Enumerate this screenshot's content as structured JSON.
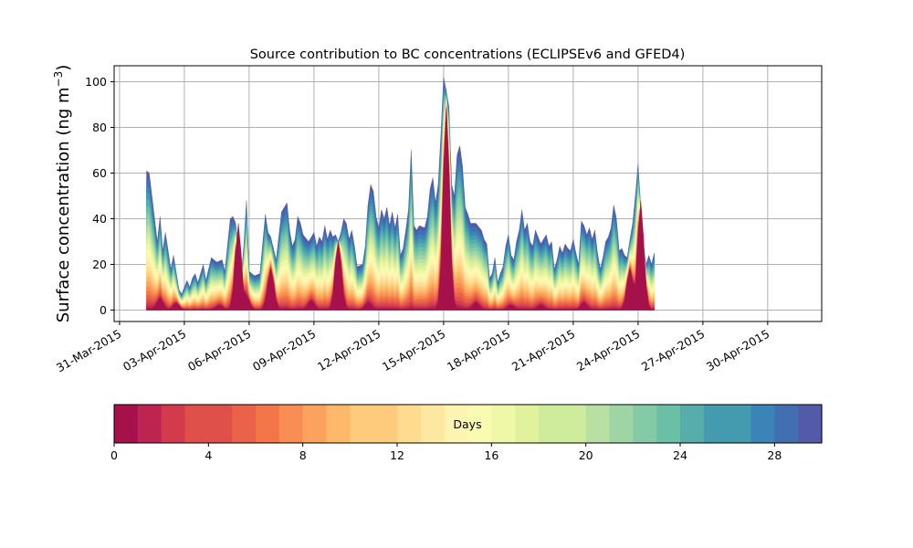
{
  "chart_data": {
    "type": "area",
    "stacked": true,
    "title": "Source contribution to BC concentrations (ECLIPSEv6 and GFED4)",
    "ylabel_main": "Surface concentration (ng m",
    "ylabel_sup": "−3",
    "ylabel_close": ")",
    "xlabel": "",
    "x_start": "2015-04-01T06:00",
    "x_step_hours": 3,
    "xlim": [
      "2015-03-30T18:00",
      "2015-05-02T12:00"
    ],
    "ylim": [
      -5,
      107
    ],
    "grid": true,
    "x_ticks": [
      "31-Mar-2015",
      "03-Apr-2015",
      "06-Apr-2015",
      "09-Apr-2015",
      "12-Apr-2015",
      "15-Apr-2015",
      "18-Apr-2015",
      "21-Apr-2015",
      "24-Apr-2015",
      "27-Apr-2015",
      "30-Apr-2015"
    ],
    "x_tick_dates": [
      "2015-03-31",
      "2015-04-03",
      "2015-04-06",
      "2015-04-09",
      "2015-04-12",
      "2015-04-15",
      "2015-04-18",
      "2015-04-21",
      "2015-04-24",
      "2015-04-27",
      "2015-04-30"
    ],
    "y_ticks": [
      0,
      20,
      40,
      60,
      80,
      100
    ],
    "total_keyframes": [
      [
        0,
        61
      ],
      [
        1,
        60
      ],
      [
        3,
        40
      ],
      [
        4,
        30
      ],
      [
        5,
        41
      ],
      [
        6,
        26
      ],
      [
        7,
        34
      ],
      [
        9,
        18
      ],
      [
        10,
        24
      ],
      [
        12,
        9
      ],
      [
        13,
        7
      ],
      [
        14,
        10
      ],
      [
        15,
        13
      ],
      [
        16,
        10
      ],
      [
        17,
        14
      ],
      [
        18,
        16
      ],
      [
        19,
        12
      ],
      [
        21,
        20
      ],
      [
        22,
        13
      ],
      [
        24,
        23
      ],
      [
        26,
        21
      ],
      [
        28,
        22
      ],
      [
        29,
        17
      ],
      [
        31,
        40
      ],
      [
        32,
        41
      ],
      [
        33,
        38
      ],
      [
        35,
        14
      ],
      [
        36,
        28
      ],
      [
        37,
        48
      ],
      [
        38,
        17
      ],
      [
        40,
        15
      ],
      [
        42,
        16
      ],
      [
        44,
        42
      ],
      [
        45,
        34
      ],
      [
        46,
        32
      ],
      [
        47,
        27
      ],
      [
        48,
        22
      ],
      [
        50,
        43
      ],
      [
        52,
        47
      ],
      [
        53,
        35
      ],
      [
        54,
        28
      ],
      [
        55,
        31
      ],
      [
        56,
        41
      ],
      [
        57,
        38
      ],
      [
        58,
        33
      ],
      [
        60,
        30
      ],
      [
        61,
        32
      ],
      [
        62,
        34
      ],
      [
        63,
        28
      ],
      [
        64,
        32
      ],
      [
        65,
        30
      ],
      [
        66,
        37
      ],
      [
        67,
        31
      ],
      [
        68,
        35
      ],
      [
        69,
        32
      ],
      [
        70,
        33
      ],
      [
        71,
        30
      ],
      [
        72,
        34
      ],
      [
        73,
        40
      ],
      [
        74,
        38
      ],
      [
        75,
        31
      ],
      [
        76,
        35
      ],
      [
        77,
        28
      ],
      [
        78,
        19
      ],
      [
        80,
        20
      ],
      [
        81,
        28
      ],
      [
        82,
        46
      ],
      [
        83,
        55
      ],
      [
        84,
        52
      ],
      [
        85,
        41
      ],
      [
        86,
        36
      ],
      [
        87,
        44
      ],
      [
        88,
        40
      ],
      [
        89,
        45
      ],
      [
        90,
        37
      ],
      [
        91,
        43
      ],
      [
        92,
        36
      ],
      [
        93,
        42
      ],
      [
        94,
        24
      ],
      [
        95,
        27
      ],
      [
        96,
        35
      ],
      [
        97,
        44
      ],
      [
        98,
        70
      ],
      [
        99,
        37
      ],
      [
        100,
        35
      ],
      [
        101,
        37
      ],
      [
        103,
        36
      ],
      [
        104,
        41
      ],
      [
        105,
        53
      ],
      [
        106,
        58
      ],
      [
        107,
        47
      ],
      [
        108,
        55
      ],
      [
        109,
        77
      ],
      [
        110,
        102
      ],
      [
        111,
        96
      ],
      [
        112,
        89
      ],
      [
        113,
        55
      ],
      [
        114,
        50
      ],
      [
        115,
        68
      ],
      [
        116,
        72
      ],
      [
        117,
        63
      ],
      [
        118,
        45
      ],
      [
        119,
        42
      ],
      [
        120,
        38
      ],
      [
        122,
        38
      ],
      [
        124,
        35
      ],
      [
        125,
        31
      ],
      [
        126,
        29
      ],
      [
        127,
        14
      ],
      [
        128,
        16
      ],
      [
        129,
        23
      ],
      [
        130,
        12
      ],
      [
        131,
        16
      ],
      [
        132,
        19
      ],
      [
        133,
        28
      ],
      [
        134,
        33
      ],
      [
        135,
        24
      ],
      [
        136,
        22
      ],
      [
        137,
        30
      ],
      [
        138,
        35
      ],
      [
        139,
        44
      ],
      [
        140,
        35
      ],
      [
        141,
        38
      ],
      [
        142,
        30
      ],
      [
        143,
        28
      ],
      [
        144,
        35
      ],
      [
        145,
        32
      ],
      [
        146,
        29
      ],
      [
        147,
        31
      ],
      [
        148,
        33
      ],
      [
        149,
        28
      ],
      [
        150,
        30
      ],
      [
        151,
        18
      ],
      [
        152,
        22
      ],
      [
        153,
        28
      ],
      [
        154,
        25
      ],
      [
        155,
        29
      ],
      [
        156,
        27
      ],
      [
        157,
        26
      ],
      [
        158,
        31
      ],
      [
        159,
        25
      ],
      [
        160,
        20
      ],
      [
        161,
        39
      ],
      [
        162,
        37
      ],
      [
        163,
        33
      ],
      [
        164,
        36
      ],
      [
        165,
        31
      ],
      [
        166,
        35
      ],
      [
        167,
        25
      ],
      [
        168,
        18
      ],
      [
        169,
        23
      ],
      [
        170,
        30
      ],
      [
        171,
        32
      ],
      [
        172,
        36
      ],
      [
        173,
        46
      ],
      [
        174,
        40
      ],
      [
        175,
        26
      ],
      [
        176,
        27
      ],
      [
        177,
        24
      ],
      [
        178,
        23
      ],
      [
        179,
        31
      ],
      [
        180,
        38
      ],
      [
        181,
        50
      ],
      [
        182,
        64
      ],
      [
        183,
        45
      ],
      [
        184,
        28
      ],
      [
        185,
        20
      ],
      [
        186,
        24
      ],
      [
        187,
        20
      ],
      [
        188,
        25
      ]
    ],
    "fresh_peaks": [
      [
        5,
        5
      ],
      [
        11,
        3
      ],
      [
        27,
        2
      ],
      [
        34,
        38
      ],
      [
        37,
        6
      ],
      [
        46,
        18
      ],
      [
        61,
        4
      ],
      [
        71,
        30
      ],
      [
        82,
        3
      ],
      [
        111,
        88
      ],
      [
        122,
        3
      ],
      [
        135,
        2
      ],
      [
        146,
        2
      ],
      [
        162,
        3
      ],
      [
        179,
        18
      ],
      [
        183,
        48
      ]
    ],
    "colorbar": {
      "label": "Days",
      "min": 0,
      "max": 30,
      "ticks": [
        "0",
        "4",
        "8",
        "12",
        "16",
        "20",
        "24",
        "28"
      ],
      "colors": [
        "#a7114b",
        "#be2450",
        "#d33a4b",
        "#e0504a",
        "#ea6249",
        "#f47548",
        "#f88e53",
        "#fba35e",
        "#fdb869",
        "#fecb7d",
        "#fedb8e",
        "#fee8a1",
        "#fef4b1",
        "#f8fbb0",
        "#eff8a6",
        "#e1f29d",
        "#cfeb9c",
        "#b8e0a2",
        "#9fd5a4",
        "#85caa6",
        "#6abfa6",
        "#56adaa",
        "#449aaf",
        "#3a84b8",
        "#416fb2",
        "#535aa7"
      ]
    }
  }
}
